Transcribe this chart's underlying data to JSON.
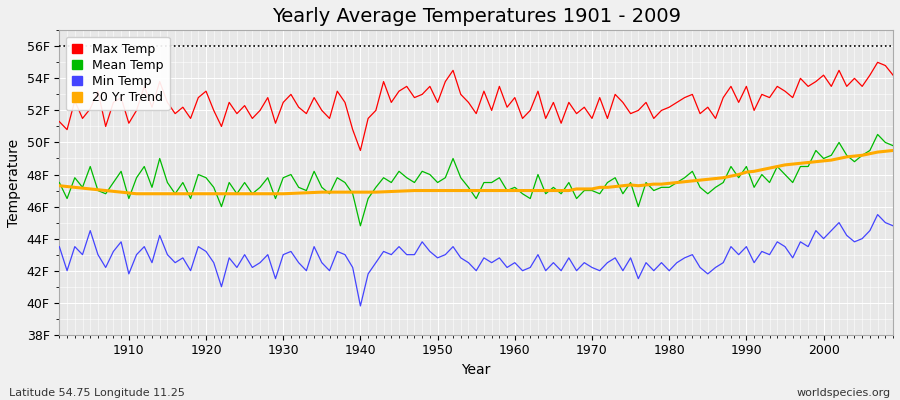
{
  "title": "Yearly Average Temperatures 1901 - 2009",
  "xlabel": "Year",
  "ylabel": "Temperature",
  "lat_lon_label": "Latitude 54.75 Longitude 11.25",
  "credit_label": "worldspecies.org",
  "years": [
    1901,
    1902,
    1903,
    1904,
    1905,
    1906,
    1907,
    1908,
    1909,
    1910,
    1911,
    1912,
    1913,
    1914,
    1915,
    1916,
    1917,
    1918,
    1919,
    1920,
    1921,
    1922,
    1923,
    1924,
    1925,
    1926,
    1927,
    1928,
    1929,
    1930,
    1931,
    1932,
    1933,
    1934,
    1935,
    1936,
    1937,
    1938,
    1939,
    1940,
    1941,
    1942,
    1943,
    1944,
    1945,
    1946,
    1947,
    1948,
    1949,
    1950,
    1951,
    1952,
    1953,
    1954,
    1955,
    1956,
    1957,
    1958,
    1959,
    1960,
    1961,
    1962,
    1963,
    1964,
    1965,
    1966,
    1967,
    1968,
    1969,
    1970,
    1971,
    1972,
    1973,
    1974,
    1975,
    1976,
    1977,
    1978,
    1979,
    1980,
    1981,
    1982,
    1983,
    1984,
    1985,
    1986,
    1987,
    1988,
    1989,
    1990,
    1991,
    1992,
    1993,
    1994,
    1995,
    1996,
    1997,
    1998,
    1999,
    2000,
    2001,
    2002,
    2003,
    2004,
    2005,
    2006,
    2007,
    2008,
    2009
  ],
  "max_temp": [
    51.3,
    50.8,
    52.6,
    51.5,
    52.1,
    53.2,
    51.0,
    52.5,
    52.8,
    51.2,
    52.0,
    53.5,
    52.2,
    53.8,
    52.5,
    51.8,
    52.2,
    51.5,
    52.8,
    53.2,
    52.0,
    51.0,
    52.5,
    51.8,
    52.3,
    51.5,
    52.0,
    52.8,
    51.2,
    52.5,
    53.0,
    52.2,
    51.8,
    52.8,
    52.0,
    51.5,
    53.2,
    52.5,
    50.8,
    49.5,
    51.5,
    52.0,
    53.8,
    52.5,
    53.2,
    53.5,
    52.8,
    53.0,
    53.5,
    52.5,
    53.8,
    54.5,
    53.0,
    52.5,
    51.8,
    53.2,
    52.0,
    53.5,
    52.2,
    52.8,
    51.5,
    52.0,
    53.2,
    51.5,
    52.5,
    51.2,
    52.5,
    51.8,
    52.2,
    51.5,
    52.8,
    51.5,
    53.0,
    52.5,
    51.8,
    52.0,
    52.5,
    51.5,
    52.0,
    52.2,
    52.5,
    52.8,
    53.0,
    51.8,
    52.2,
    51.5,
    52.8,
    53.5,
    52.5,
    53.5,
    52.0,
    53.0,
    52.8,
    53.5,
    53.2,
    52.8,
    54.0,
    53.5,
    53.8,
    54.2,
    53.5,
    54.5,
    53.5,
    54.0,
    53.5,
    54.2,
    55.0,
    54.8,
    54.2
  ],
  "mean_temp": [
    47.5,
    46.5,
    47.8,
    47.2,
    48.5,
    47.0,
    46.8,
    47.5,
    48.2,
    46.5,
    47.8,
    48.5,
    47.2,
    49.0,
    47.5,
    46.8,
    47.5,
    46.5,
    48.0,
    47.8,
    47.2,
    46.0,
    47.5,
    46.8,
    47.5,
    46.8,
    47.2,
    47.8,
    46.5,
    47.8,
    48.0,
    47.2,
    47.0,
    48.2,
    47.2,
    46.8,
    47.8,
    47.5,
    46.8,
    44.8,
    46.5,
    47.2,
    47.8,
    47.5,
    48.2,
    47.8,
    47.5,
    48.2,
    48.0,
    47.5,
    47.8,
    49.0,
    47.8,
    47.2,
    46.5,
    47.5,
    47.5,
    47.8,
    47.0,
    47.2,
    46.8,
    46.5,
    48.0,
    46.8,
    47.2,
    46.8,
    47.5,
    46.5,
    47.0,
    47.0,
    46.8,
    47.5,
    47.8,
    46.8,
    47.5,
    46.0,
    47.5,
    47.0,
    47.2,
    47.2,
    47.5,
    47.8,
    48.2,
    47.2,
    46.8,
    47.2,
    47.5,
    48.5,
    47.8,
    48.5,
    47.2,
    48.0,
    47.5,
    48.5,
    48.0,
    47.5,
    48.5,
    48.5,
    49.5,
    49.0,
    49.2,
    50.0,
    49.2,
    48.8,
    49.2,
    49.5,
    50.5,
    50.0,
    49.8
  ],
  "min_temp": [
    43.5,
    42.0,
    43.5,
    43.0,
    44.5,
    43.0,
    42.2,
    43.2,
    43.8,
    41.8,
    43.0,
    43.5,
    42.5,
    44.2,
    43.0,
    42.5,
    42.8,
    42.0,
    43.5,
    43.2,
    42.5,
    41.0,
    42.8,
    42.2,
    43.0,
    42.2,
    42.5,
    43.0,
    41.5,
    43.0,
    43.2,
    42.5,
    42.0,
    43.5,
    42.5,
    42.0,
    43.2,
    43.0,
    42.2,
    39.8,
    41.8,
    42.5,
    43.2,
    43.0,
    43.5,
    43.0,
    43.0,
    43.8,
    43.2,
    42.8,
    43.0,
    43.5,
    42.8,
    42.5,
    42.0,
    42.8,
    42.5,
    42.8,
    42.2,
    42.5,
    42.0,
    42.2,
    43.0,
    42.0,
    42.5,
    42.0,
    42.8,
    42.0,
    42.5,
    42.2,
    42.0,
    42.5,
    42.8,
    42.0,
    42.8,
    41.5,
    42.5,
    42.0,
    42.5,
    42.0,
    42.5,
    42.8,
    43.0,
    42.2,
    41.8,
    42.2,
    42.5,
    43.5,
    43.0,
    43.5,
    42.5,
    43.2,
    43.0,
    43.8,
    43.5,
    42.8,
    43.8,
    43.5,
    44.5,
    44.0,
    44.5,
    45.0,
    44.2,
    43.8,
    44.0,
    44.5,
    45.5,
    45.0,
    44.8
  ],
  "trend_temp": [
    47.3,
    47.25,
    47.2,
    47.15,
    47.1,
    47.05,
    47.0,
    46.95,
    46.9,
    46.85,
    46.8,
    46.8,
    46.8,
    46.8,
    46.8,
    46.8,
    46.8,
    46.8,
    46.8,
    46.8,
    46.8,
    46.8,
    46.8,
    46.8,
    46.8,
    46.8,
    46.8,
    46.8,
    46.8,
    46.8,
    46.82,
    46.84,
    46.86,
    46.88,
    46.9,
    46.9,
    46.9,
    46.9,
    46.9,
    46.9,
    46.9,
    46.9,
    46.92,
    46.94,
    46.96,
    46.98,
    47.0,
    47.0,
    47.0,
    47.0,
    47.0,
    47.0,
    47.0,
    47.0,
    47.0,
    47.0,
    47.0,
    47.0,
    47.0,
    47.0,
    47.0,
    47.0,
    47.0,
    47.0,
    47.0,
    47.0,
    47.0,
    47.1,
    47.1,
    47.1,
    47.2,
    47.2,
    47.25,
    47.3,
    47.35,
    47.3,
    47.35,
    47.4,
    47.4,
    47.45,
    47.5,
    47.55,
    47.6,
    47.65,
    47.7,
    47.75,
    47.8,
    47.9,
    48.0,
    48.15,
    48.2,
    48.3,
    48.4,
    48.5,
    48.6,
    48.65,
    48.7,
    48.75,
    48.8,
    48.85,
    48.9,
    49.0,
    49.1,
    49.15,
    49.2,
    49.3,
    49.4,
    49.45,
    49.5
  ],
  "ylim": [
    38,
    57
  ],
  "yticks": [
    38,
    40,
    42,
    44,
    46,
    48,
    50,
    52,
    54,
    56
  ],
  "ytick_labels": [
    "38F",
    "40F",
    "42F",
    "44F",
    "46F",
    "48F",
    "50F",
    "52F",
    "54F",
    "56F"
  ],
  "xlim": [
    1901,
    2009
  ],
  "max_color": "#ff0000",
  "mean_color": "#00bb00",
  "min_color": "#4444ff",
  "trend_color": "#ffaa00",
  "bg_color": "#f0f0f0",
  "plot_bg_color": "#e8e8e8",
  "grid_color": "#ffffff",
  "dashed_line_y": 56,
  "title_fontsize": 14,
  "axis_label_fontsize": 10,
  "legend_fontsize": 9,
  "tick_fontsize": 9
}
